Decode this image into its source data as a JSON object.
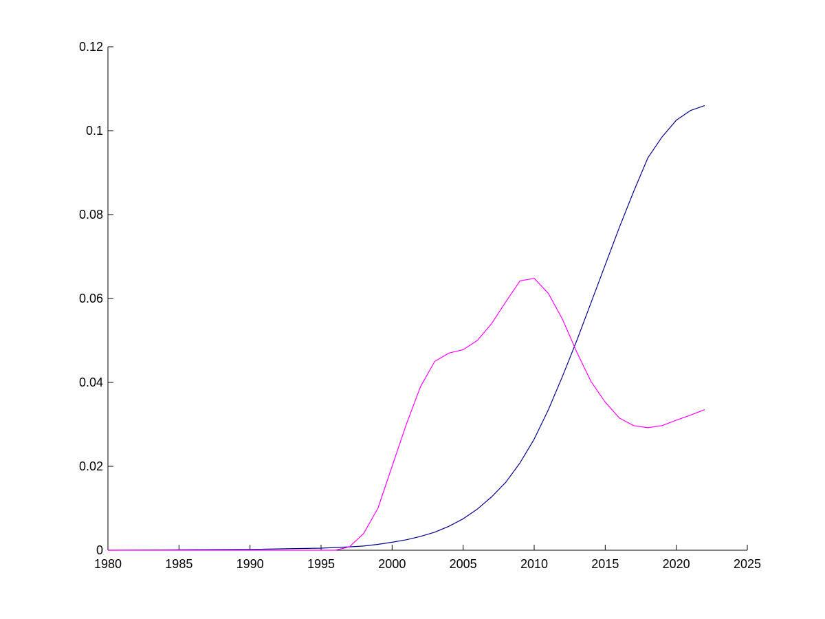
{
  "chart_data": {
    "type": "line",
    "title": "",
    "xlabel": "",
    "ylabel": "",
    "xlim": [
      1980,
      2025
    ],
    "ylim": [
      0,
      0.12
    ],
    "grid": false,
    "x_ticks": [
      "1980",
      "1985",
      "1990",
      "1995",
      "2000",
      "2005",
      "2010",
      "2015",
      "2020",
      "2025"
    ],
    "y_ticks": [
      "0",
      "0.02",
      "0.04",
      "0.06",
      "0.08",
      "0.1",
      "0.12"
    ],
    "series": [
      {
        "color": "#00008b",
        "points": [
          [
            1980,
            0
          ],
          [
            1985,
            0.0001
          ],
          [
            1990,
            0.0002
          ],
          [
            1995,
            0.0005
          ],
          [
            1997,
            0.0008
          ],
          [
            1998,
            0.001
          ],
          [
            1999,
            0.0014
          ],
          [
            2000,
            0.0019
          ],
          [
            2001,
            0.0025
          ],
          [
            2002,
            0.0033
          ],
          [
            2003,
            0.0043
          ],
          [
            2004,
            0.0057
          ],
          [
            2005,
            0.0075
          ],
          [
            2006,
            0.0098
          ],
          [
            2007,
            0.0127
          ],
          [
            2008,
            0.0162
          ],
          [
            2009,
            0.0208
          ],
          [
            2010,
            0.0265
          ],
          [
            2011,
            0.0335
          ],
          [
            2012,
            0.0415
          ],
          [
            2013,
            0.05
          ],
          [
            2014,
            0.059
          ],
          [
            2015,
            0.068
          ],
          [
            2016,
            0.077
          ],
          [
            2017,
            0.0855
          ],
          [
            2018,
            0.0935
          ],
          [
            2019,
            0.0985
          ],
          [
            2020,
            0.1025
          ],
          [
            2021,
            0.1048
          ],
          [
            2022,
            0.106
          ]
        ]
      },
      {
        "color": "#ff00ff",
        "points": [
          [
            1980,
            0
          ],
          [
            1985,
            0
          ],
          [
            1990,
            0
          ],
          [
            1995,
            0
          ],
          [
            1996,
            0
          ],
          [
            1997,
            0.0008
          ],
          [
            1998,
            0.004
          ],
          [
            1999,
            0.01
          ],
          [
            2000,
            0.02
          ],
          [
            2001,
            0.03
          ],
          [
            2002,
            0.039
          ],
          [
            2003,
            0.045
          ],
          [
            2004,
            0.047
          ],
          [
            2005,
            0.0478
          ],
          [
            2006,
            0.05
          ],
          [
            2007,
            0.054
          ],
          [
            2008,
            0.0592
          ],
          [
            2009,
            0.0642
          ],
          [
            2010,
            0.0648
          ],
          [
            2011,
            0.0612
          ],
          [
            2012,
            0.055
          ],
          [
            2013,
            0.0472
          ],
          [
            2014,
            0.0402
          ],
          [
            2015,
            0.0353
          ],
          [
            2016,
            0.0315
          ],
          [
            2017,
            0.0297
          ],
          [
            2018,
            0.0292
          ],
          [
            2019,
            0.0297
          ],
          [
            2020,
            0.031
          ],
          [
            2021,
            0.0322
          ],
          [
            2022,
            0.0335
          ]
        ]
      }
    ]
  }
}
